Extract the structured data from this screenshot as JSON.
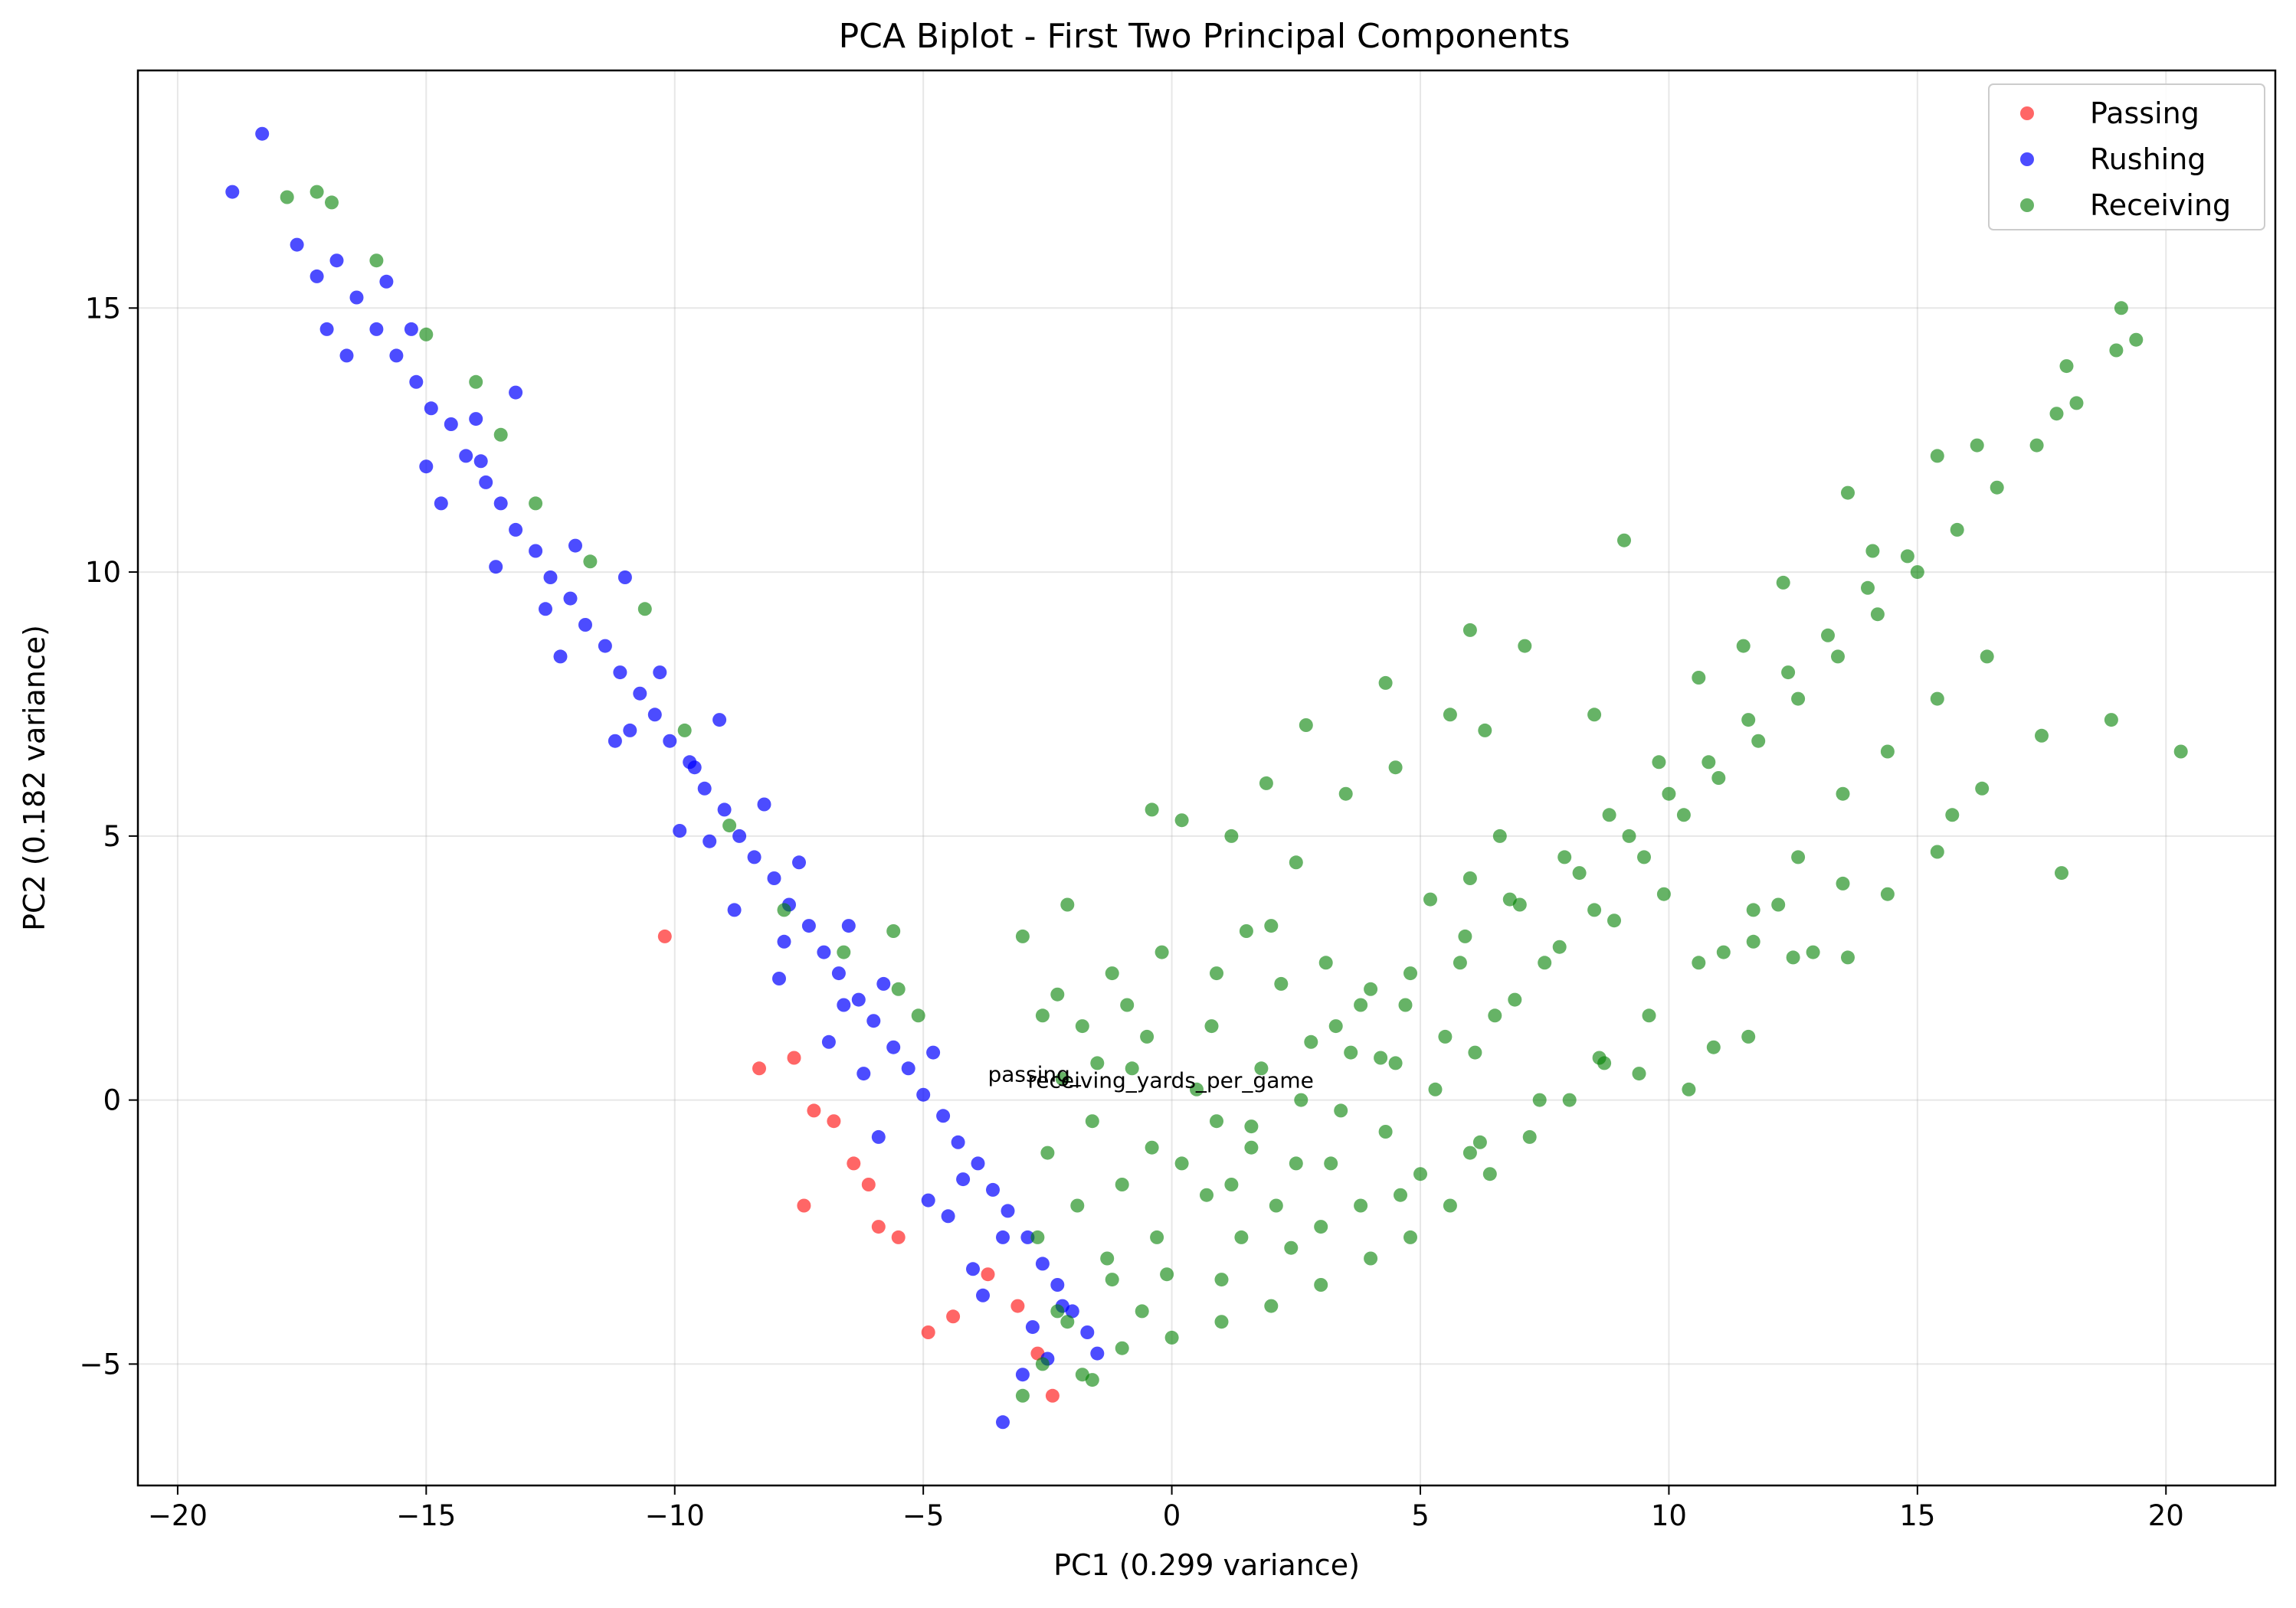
{
  "chart_data": {
    "type": "scatter",
    "title": "PCA Biplot - First Two Principal Components",
    "xlabel": "PC1 (0.299 variance)",
    "ylabel": "PC2 (0.182 variance)",
    "xlim": [
      -20.8,
      22.2
    ],
    "ylim": [
      -7.3,
      19.5
    ],
    "x_ticks": [
      -20,
      -15,
      -10,
      -5,
      0,
      5,
      10,
      15,
      20
    ],
    "y_ticks": [
      -5,
      0,
      5,
      10,
      15
    ],
    "x_tick_labels": [
      "−20",
      "−15",
      "−10",
      "−5",
      "0",
      "5",
      "10",
      "15",
      "20"
    ],
    "y_tick_labels": [
      "−5",
      "0",
      "5",
      "10",
      "15"
    ],
    "grid": true,
    "legend_position": "top-right",
    "series": [
      {
        "name": "Passing",
        "color": "#ff0000",
        "opacity": 0.6,
        "points": [
          [
            -10.2,
            3.1
          ],
          [
            -7.6,
            0.8
          ],
          [
            -7.4,
            -2.0
          ],
          [
            -6.8,
            -0.4
          ],
          [
            -6.1,
            -1.6
          ],
          [
            -5.5,
            -2.6
          ],
          [
            -4.9,
            -4.4
          ],
          [
            -4.4,
            -4.1
          ],
          [
            -3.7,
            -3.3
          ],
          [
            -2.4,
            -5.6
          ],
          [
            -2.7,
            -4.8
          ],
          [
            -7.2,
            -0.2
          ],
          [
            -5.9,
            -2.4
          ],
          [
            -3.1,
            -3.9
          ],
          [
            -8.3,
            0.6
          ],
          [
            -6.4,
            -1.2
          ]
        ]
      },
      {
        "name": "Rushing",
        "color": "#0000ff",
        "opacity": 0.7,
        "points": [
          [
            -18.3,
            18.3
          ],
          [
            -18.9,
            17.2
          ],
          [
            -17.6,
            16.2
          ],
          [
            -17.2,
            15.6
          ],
          [
            -16.8,
            15.9
          ],
          [
            -16.4,
            15.2
          ],
          [
            -16.0,
            14.6
          ],
          [
            -15.6,
            14.1
          ],
          [
            -15.2,
            13.6
          ],
          [
            -14.9,
            13.1
          ],
          [
            -14.5,
            12.8
          ],
          [
            -14.2,
            12.2
          ],
          [
            -13.8,
            11.7
          ],
          [
            -13.5,
            11.3
          ],
          [
            -13.2,
            10.8
          ],
          [
            -12.8,
            10.4
          ],
          [
            -12.5,
            9.9
          ],
          [
            -12.1,
            9.5
          ],
          [
            -11.8,
            9.0
          ],
          [
            -11.4,
            8.6
          ],
          [
            -11.1,
            8.1
          ],
          [
            -10.7,
            7.7
          ],
          [
            -10.4,
            7.3
          ],
          [
            -10.1,
            6.8
          ],
          [
            -9.7,
            6.4
          ],
          [
            -9.4,
            5.9
          ],
          [
            -9.0,
            5.5
          ],
          [
            -8.7,
            5.0
          ],
          [
            -8.4,
            4.6
          ],
          [
            -8.0,
            4.2
          ],
          [
            -7.7,
            3.7
          ],
          [
            -7.3,
            3.3
          ],
          [
            -7.0,
            2.8
          ],
          [
            -6.7,
            2.4
          ],
          [
            -6.3,
            1.9
          ],
          [
            -6.0,
            1.5
          ],
          [
            -5.6,
            1.0
          ],
          [
            -5.3,
            0.6
          ],
          [
            -5.0,
            0.1
          ],
          [
            -4.6,
            -0.3
          ],
          [
            -4.3,
            -0.8
          ],
          [
            -3.9,
            -1.2
          ],
          [
            -3.6,
            -1.7
          ],
          [
            -3.3,
            -2.1
          ],
          [
            -2.9,
            -2.6
          ],
          [
            -2.6,
            -3.1
          ],
          [
            -2.3,
            -3.5
          ],
          [
            -2.0,
            -4.0
          ],
          [
            -1.7,
            -4.4
          ],
          [
            -1.5,
            -4.8
          ],
          [
            -3.4,
            -6.1
          ],
          [
            -3.0,
            -5.2
          ],
          [
            -15.8,
            15.5
          ],
          [
            -15.3,
            14.6
          ],
          [
            -14.0,
            12.9
          ],
          [
            -13.2,
            13.4
          ],
          [
            -12.0,
            10.5
          ],
          [
            -11.0,
            9.9
          ],
          [
            -10.3,
            8.1
          ],
          [
            -9.1,
            7.2
          ],
          [
            -8.2,
            5.6
          ],
          [
            -7.5,
            4.5
          ],
          [
            -6.5,
            3.3
          ],
          [
            -5.8,
            2.2
          ],
          [
            -4.8,
            0.9
          ],
          [
            -4.2,
            -1.5
          ],
          [
            -3.4,
            -2.6
          ],
          [
            -2.2,
            -3.9
          ],
          [
            -16.6,
            14.1
          ],
          [
            -15.0,
            12.0
          ],
          [
            -13.6,
            10.1
          ],
          [
            -12.3,
            8.4
          ],
          [
            -11.2,
            6.8
          ],
          [
            -9.9,
            5.1
          ],
          [
            -8.8,
            3.6
          ],
          [
            -7.9,
            2.3
          ],
          [
            -6.9,
            1.1
          ],
          [
            -5.9,
            -0.7
          ],
          [
            -4.9,
            -1.9
          ],
          [
            -3.8,
            -3.7
          ],
          [
            -2.5,
            -4.9
          ],
          [
            -17.0,
            14.6
          ],
          [
            -14.7,
            11.3
          ],
          [
            -12.6,
            9.3
          ],
          [
            -10.9,
            7.0
          ],
          [
            -9.3,
            4.9
          ],
          [
            -7.8,
            3.0
          ],
          [
            -6.2,
            0.5
          ],
          [
            -4.5,
            -2.2
          ],
          [
            -2.8,
            -4.3
          ],
          [
            -4.0,
            -3.2
          ],
          [
            -9.6,
            6.3
          ],
          [
            -13.9,
            12.1
          ],
          [
            -6.6,
            1.8
          ]
        ]
      },
      {
        "name": "Receiving",
        "color": "#008000",
        "opacity": 0.6,
        "points": [
          [
            -17.8,
            17.1
          ],
          [
            -17.2,
            17.2
          ],
          [
            -16.9,
            17.0
          ],
          [
            -16.0,
            15.9
          ],
          [
            -15.0,
            14.5
          ],
          [
            -14.0,
            13.6
          ],
          [
            -13.5,
            12.6
          ],
          [
            -12.8,
            11.3
          ],
          [
            -11.7,
            10.2
          ],
          [
            -10.6,
            9.3
          ],
          [
            -9.8,
            7.0
          ],
          [
            -8.9,
            5.2
          ],
          [
            -7.8,
            3.6
          ],
          [
            -6.6,
            2.8
          ],
          [
            -5.6,
            3.2
          ],
          [
            -5.1,
            1.6
          ],
          [
            -5.5,
            2.1
          ],
          [
            -2.1,
            3.7
          ],
          [
            -3.0,
            3.1
          ],
          [
            -2.3,
            2.0
          ],
          [
            -1.2,
            2.4
          ],
          [
            -0.2,
            2.8
          ],
          [
            0.9,
            2.4
          ],
          [
            2.0,
            3.3
          ],
          [
            3.1,
            2.6
          ],
          [
            4.0,
            2.1
          ],
          [
            5.2,
            3.8
          ],
          [
            6.0,
            4.2
          ],
          [
            6.6,
            5.0
          ],
          [
            -0.4,
            5.5
          ],
          [
            0.2,
            5.3
          ],
          [
            1.2,
            5.0
          ],
          [
            1.9,
            6.0
          ],
          [
            2.7,
            7.1
          ],
          [
            4.3,
            7.9
          ],
          [
            5.6,
            7.3
          ],
          [
            6.3,
            7.0
          ],
          [
            7.1,
            8.6
          ],
          [
            8.5,
            7.3
          ],
          [
            9.1,
            10.6
          ],
          [
            6.0,
            8.9
          ],
          [
            4.5,
            6.3
          ],
          [
            3.5,
            5.8
          ],
          [
            2.5,
            4.5
          ],
          [
            -1.8,
            1.4
          ],
          [
            -0.8,
            0.6
          ],
          [
            0.5,
            0.2
          ],
          [
            1.6,
            -0.5
          ],
          [
            2.5,
            -1.2
          ],
          [
            3.4,
            -0.2
          ],
          [
            4.5,
            0.7
          ],
          [
            5.5,
            1.2
          ],
          [
            6.5,
            1.6
          ],
          [
            7.5,
            2.6
          ],
          [
            8.5,
            3.6
          ],
          [
            9.5,
            4.6
          ],
          [
            10.3,
            5.4
          ],
          [
            11.0,
            6.1
          ],
          [
            11.8,
            6.8
          ],
          [
            12.6,
            7.6
          ],
          [
            13.4,
            8.4
          ],
          [
            14.2,
            9.2
          ],
          [
            15.0,
            10.0
          ],
          [
            15.8,
            10.8
          ],
          [
            16.6,
            11.6
          ],
          [
            17.4,
            12.4
          ],
          [
            18.2,
            13.2
          ],
          [
            19.0,
            14.2
          ],
          [
            19.1,
            15.0
          ],
          [
            19.4,
            14.4
          ],
          [
            18.0,
            13.9
          ],
          [
            17.8,
            13.0
          ],
          [
            16.2,
            12.4
          ],
          [
            15.4,
            12.2
          ],
          [
            14.1,
            10.4
          ],
          [
            13.6,
            11.5
          ],
          [
            12.3,
            9.8
          ],
          [
            11.5,
            8.6
          ],
          [
            10.6,
            8.0
          ],
          [
            9.8,
            6.4
          ],
          [
            8.8,
            5.4
          ],
          [
            7.9,
            4.6
          ],
          [
            6.8,
            3.8
          ],
          [
            5.8,
            2.6
          ],
          [
            4.7,
            1.8
          ],
          [
            3.6,
            0.9
          ],
          [
            2.6,
            0.0
          ],
          [
            1.6,
            -0.9
          ],
          [
            0.7,
            -1.8
          ],
          [
            -0.3,
            -2.6
          ],
          [
            -1.2,
            -3.4
          ],
          [
            -2.1,
            -4.2
          ],
          [
            -2.6,
            -5.0
          ],
          [
            -1.8,
            -5.2
          ],
          [
            -3.0,
            -5.6
          ],
          [
            -0.6,
            -4.0
          ],
          [
            1.0,
            -3.4
          ],
          [
            2.4,
            -2.8
          ],
          [
            3.8,
            -2.0
          ],
          [
            5.0,
            -1.4
          ],
          [
            6.2,
            -0.8
          ],
          [
            7.4,
            0.0
          ],
          [
            8.6,
            0.8
          ],
          [
            9.6,
            1.6
          ],
          [
            10.6,
            2.6
          ],
          [
            11.7,
            3.6
          ],
          [
            12.6,
            4.6
          ],
          [
            13.5,
            5.8
          ],
          [
            14.4,
            6.6
          ],
          [
            15.4,
            7.6
          ],
          [
            16.4,
            8.4
          ],
          [
            17.5,
            6.9
          ],
          [
            18.9,
            7.2
          ],
          [
            20.3,
            6.6
          ],
          [
            16.3,
            5.9
          ],
          [
            15.4,
            4.7
          ],
          [
            17.9,
            4.3
          ],
          [
            15.7,
            5.4
          ],
          [
            14.4,
            3.9
          ],
          [
            13.5,
            4.1
          ],
          [
            13.6,
            2.7
          ],
          [
            12.9,
            2.8
          ],
          [
            12.5,
            2.7
          ],
          [
            12.2,
            3.7
          ],
          [
            11.7,
            3.0
          ],
          [
            11.1,
            2.8
          ],
          [
            11.6,
            1.2
          ],
          [
            10.9,
            1.0
          ],
          [
            10.4,
            0.2
          ],
          [
            9.4,
            0.5
          ],
          [
            8.7,
            0.7
          ],
          [
            8.0,
            0.0
          ],
          [
            7.2,
            -0.7
          ],
          [
            6.4,
            -1.4
          ],
          [
            5.6,
            -2.0
          ],
          [
            4.8,
            -2.6
          ],
          [
            4.0,
            -3.0
          ],
          [
            3.0,
            -3.5
          ],
          [
            2.0,
            -3.9
          ],
          [
            1.0,
            -4.2
          ],
          [
            0.0,
            -4.5
          ],
          [
            -1.0,
            -4.7
          ],
          [
            -1.6,
            -5.3
          ],
          [
            -0.9,
            1.8
          ],
          [
            -2.6,
            1.6
          ],
          [
            -2.2,
            0.4
          ],
          [
            -1.5,
            0.7
          ],
          [
            -0.5,
            1.2
          ],
          [
            0.8,
            1.4
          ],
          [
            1.5,
            3.2
          ],
          [
            2.2,
            2.2
          ],
          [
            3.3,
            1.4
          ],
          [
            4.2,
            0.8
          ],
          [
            -2.5,
            -1.0
          ],
          [
            -1.6,
            -0.4
          ],
          [
            -0.4,
            -0.9
          ],
          [
            0.9,
            -0.4
          ],
          [
            1.8,
            0.6
          ],
          [
            2.8,
            1.1
          ],
          [
            3.8,
            1.8
          ],
          [
            4.8,
            2.4
          ],
          [
            5.9,
            3.1
          ],
          [
            7.0,
            3.7
          ],
          [
            8.2,
            4.3
          ],
          [
            9.2,
            5.0
          ],
          [
            10.0,
            5.8
          ],
          [
            10.8,
            6.4
          ],
          [
            11.6,
            7.2
          ],
          [
            12.4,
            8.1
          ],
          [
            13.2,
            8.8
          ],
          [
            14.0,
            9.7
          ],
          [
            14.8,
            10.3
          ],
          [
            -2.7,
            -2.6
          ],
          [
            -1.9,
            -2.0
          ],
          [
            -1.0,
            -1.6
          ],
          [
            0.2,
            -1.2
          ],
          [
            1.2,
            -1.6
          ],
          [
            2.1,
            -2.0
          ],
          [
            3.2,
            -1.2
          ],
          [
            4.3,
            -0.6
          ],
          [
            5.3,
            0.2
          ],
          [
            6.1,
            0.9
          ],
          [
            6.9,
            1.9
          ],
          [
            7.8,
            2.9
          ],
          [
            8.9,
            3.4
          ],
          [
            9.9,
            3.9
          ],
          [
            -2.3,
            -4.0
          ],
          [
            -1.3,
            -3.0
          ],
          [
            -0.1,
            -3.3
          ],
          [
            1.4,
            -2.6
          ],
          [
            3.0,
            -2.4
          ],
          [
            4.6,
            -1.8
          ],
          [
            6.0,
            -1.0
          ]
        ]
      }
    ],
    "annotations": [
      "passing_",
      "receiving_yards_per_game"
    ]
  }
}
